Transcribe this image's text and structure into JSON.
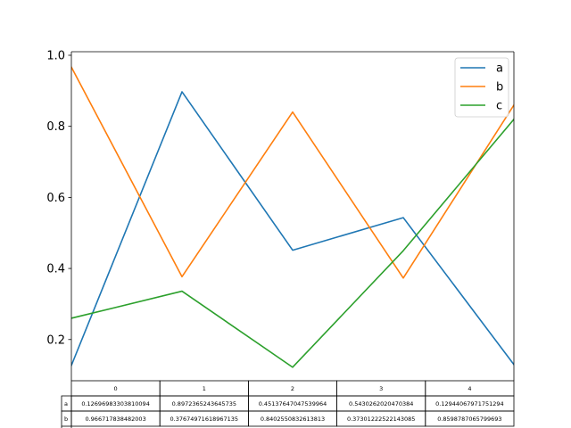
{
  "chart_data": {
    "type": "line",
    "x": [
      0,
      1,
      2,
      3,
      4
    ],
    "ylim": [
      0.084,
      1.01
    ],
    "yticks": [
      "0.2",
      "0.4",
      "0.6",
      "0.8",
      "1.0"
    ],
    "ytick_values": [
      0.2,
      0.4,
      0.6,
      0.8,
      1.0
    ],
    "grid": false,
    "legend_position": "top-right",
    "series": [
      {
        "name": "a",
        "color": "#1f77b4",
        "values": [
          0.12696983303810094,
          0.8972365243645735,
          0.45137647047539964,
          0.5430262020470384,
          0.12944067971751294
        ]
      },
      {
        "name": "b",
        "color": "#ff7f0e",
        "values": [
          0.966717838482003,
          0.37674971618967135,
          0.8402550832613813,
          0.37301222522143085,
          0.8598787065799693
        ]
      },
      {
        "name": "c",
        "color": "#2ca02c",
        "values": [
          0.26,
          0.336,
          0.122,
          0.45,
          0.82
        ]
      }
    ],
    "table": {
      "col_labels": [
        "0",
        "1",
        "2",
        "3",
        "4"
      ],
      "rows": [
        {
          "label": "a",
          "cells": [
            "0.12696983303810094",
            "0.8972365243645735",
            "0.45137647047539964",
            "0.5430262020470384",
            "0.12944067971751294"
          ]
        },
        {
          "label": "b",
          "cells": [
            "0.966717838482003",
            "0.37674971618967135",
            "0.8402550832613813",
            "0.37301222522143085",
            "0.8598787065799693"
          ]
        }
      ]
    }
  }
}
